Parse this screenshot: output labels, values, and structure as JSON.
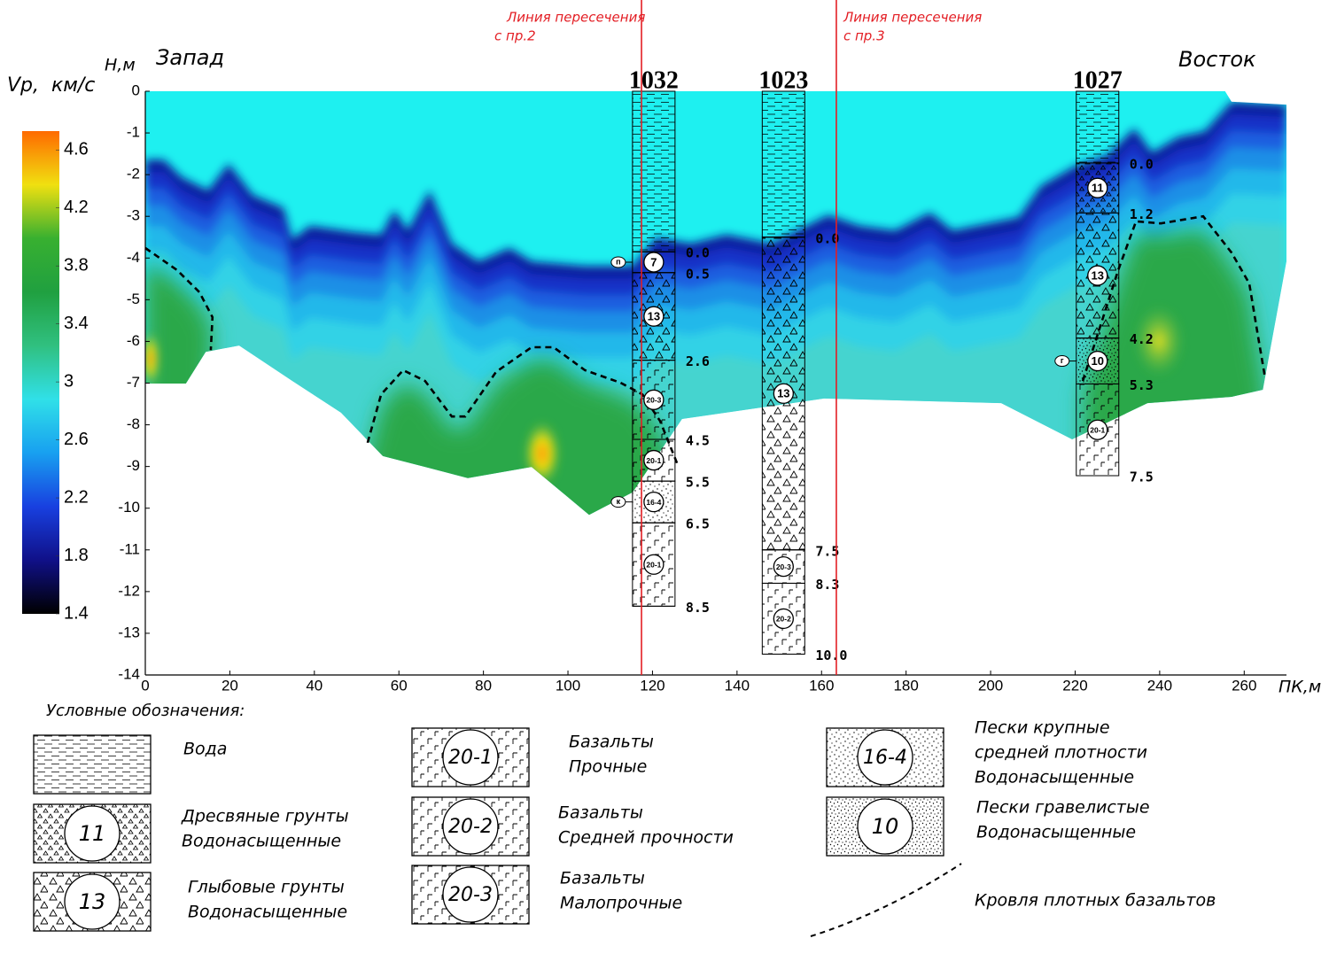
{
  "chart_data": {
    "type": "section",
    "west_label": "Запад",
    "east_label": "Восток",
    "x_label": "ПК,м",
    "y_label": "Н,м",
    "xlim": [
      0,
      270
    ],
    "xticks": [
      0,
      20,
      40,
      60,
      80,
      100,
      120,
      140,
      160,
      180,
      200,
      220,
      240,
      260
    ],
    "ylim": [
      -14,
      0
    ],
    "yticks": [
      0,
      -1,
      -2,
      -3,
      -4,
      -5,
      -6,
      -7,
      -8,
      -9,
      -10,
      -11,
      -12,
      -13,
      -14
    ],
    "colorbar": {
      "label": "Vp,  км/с",
      "clim": [
        1.4,
        4.73
      ],
      "ticks": [
        4.6,
        4.2,
        3.8,
        3.4,
        3,
        2.6,
        2.2,
        1.8,
        1.4
      ],
      "colors": [
        "#000000",
        "#101088",
        "#1840e0",
        "#18a0f0",
        "#30e0e8",
        "#30c080",
        "#20a040",
        "#38b030",
        "#f0e010",
        "#ff6a00"
      ]
    },
    "section_outline": {
      "x": [
        0,
        255.5,
        257,
        270,
        270,
        264.4,
        257,
        237.1,
        219.3,
        202.5,
        160.6,
        127,
        115.3,
        105,
        91.4,
        76.3,
        66.2,
        56.2,
        46.3,
        34.8,
        22.2,
        14.3,
        9.6,
        0
      ],
      "y": [
        0,
        0,
        -0.25,
        -0.32,
        -4.08,
        -7.16,
        -7.33,
        -7.48,
        -8.35,
        -7.48,
        -7.37,
        -7.86,
        -9.62,
        -10.16,
        -9.01,
        -9.28,
        -9.01,
        -8.75,
        -7.71,
        -6.95,
        -6.1,
        -6.25,
        -7.01,
        -7.01
      ]
    },
    "seabed": {
      "x": [
        0,
        4.4,
        8.6,
        14.9,
        19.7,
        25.4,
        32.7,
        34.8,
        39.0,
        49.5,
        55.8,
        58.9,
        62.1,
        67.3,
        72.5,
        78.8,
        86.2,
        91.4,
        104.0,
        115.3,
        120.8,
        129.1,
        137.5,
        148.0,
        161.6,
        169.0,
        177.4,
        185.7,
        191.0,
        206.7,
        211.9,
        220.3,
        227.7,
        234.0,
        238.2,
        244.4,
        250.7,
        257.0,
        270
      ],
      "y": [
        -1.64,
        -1.64,
        -2.06,
        -2.38,
        -1.74,
        -2.49,
        -2.8,
        -3.55,
        -3.23,
        -3.38,
        -3.44,
        -2.85,
        -3.34,
        -2.38,
        -3.65,
        -4.08,
        -3.76,
        -4.08,
        -4.19,
        -4.19,
        -3.51,
        -3.65,
        -3.44,
        -3.65,
        -2.97,
        -3.23,
        -3.34,
        -2.91,
        -3.34,
        -3.02,
        -2.27,
        -1.78,
        -1.53,
        -0.89,
        -1.47,
        -1.1,
        -0.96,
        -0.25,
        -0.32
      ]
    },
    "basalt_roof": [
      {
        "x": [
          0,
          7.5,
          12.8,
          15.9,
          15.5
        ],
        "y": [
          -3.76,
          -4.29,
          -4.82,
          -5.42,
          -6.21
        ]
      },
      {
        "x": [
          52.6,
          55.8,
          61.0,
          66.2,
          72.5,
          75.7,
          83.0,
          91.4,
          96.6,
          104.0,
          112.4,
          117.6,
          121.8,
          126.0
        ],
        "y": [
          -8.43,
          -7.27,
          -6.69,
          -6.95,
          -7.8,
          -7.8,
          -6.73,
          -6.14,
          -6.14,
          -6.69,
          -6.99,
          -7.27,
          -7.91,
          -8.97
        ]
      },
      {
        "x": [
          221.8,
          230.2,
          234.4,
          240.3,
          250.3,
          257.0,
          261.2,
          263.3,
          265.0
        ],
        "y": [
          -6.95,
          -4.29,
          -3.12,
          -3.17,
          -3.0,
          -3.87,
          -4.61,
          -5.89,
          -6.9
        ]
      }
    ],
    "intersection_color": "#e31e24",
    "intersections": [
      {
        "x": 117.4,
        "lines": [
          "Линия пересечения",
          "с пр.2"
        ]
      },
      {
        "x": 163.5,
        "lines": [
          "Линия пересечения",
          "с пр.3"
        ]
      }
    ],
    "boreholes": [
      {
        "name": "1032",
        "x": 120.3,
        "top": -3.85,
        "values": [
          0,
          0.5,
          2.6,
          4.5,
          5.5,
          6.5,
          8.5
        ],
        "value_labels": [
          "0.0",
          "0.5",
          "2.6",
          "4.5",
          "5.5",
          "6.5",
          "8.5"
        ],
        "layers": [
          {
            "code": "7",
            "pattern": "plain",
            "flag": "п"
          },
          {
            "code": "13",
            "pattern": "blocky"
          },
          {
            "code": "20-3",
            "pattern": "basalt"
          },
          {
            "code": "20-1",
            "pattern": "basalt"
          },
          {
            "code": "16-4",
            "pattern": "sand",
            "flag": "к"
          },
          {
            "code": "20-1",
            "pattern": "basalt"
          }
        ]
      },
      {
        "name": "1023",
        "x": 151.0,
        "top": -3.5,
        "values": [
          0,
          7.5,
          8.3,
          10
        ],
        "value_labels": [
          "0.0",
          "7.5",
          "8.3",
          "10.0"
        ],
        "layers": [
          {
            "code": "13",
            "pattern": "blocky"
          },
          {
            "code": "20-3",
            "pattern": "basalt"
          },
          {
            "code": "20-2",
            "pattern": "basalt"
          }
        ]
      },
      {
        "name": "1027",
        "x": 225.3,
        "top": -1.72,
        "values": [
          0,
          1.2,
          4.2,
          5.3,
          7.5
        ],
        "value_labels": [
          "0.0",
          "1.2",
          "4.2",
          "5.3",
          "7.5"
        ],
        "layers": [
          {
            "code": "11",
            "pattern": "dresva"
          },
          {
            "code": "13",
            "pattern": "blocky"
          },
          {
            "code": "10",
            "pattern": "gravel",
            "flag": "г"
          },
          {
            "code": "20-1",
            "pattern": "basalt"
          }
        ]
      }
    ],
    "legend": {
      "title": "Условные обозначения:",
      "items": [
        {
          "pattern": "water",
          "lines": [
            "Вода"
          ]
        },
        {
          "code": "11",
          "pattern": "dresva",
          "lines": [
            "Дресвяные грунты",
            "Водонасыщенные"
          ]
        },
        {
          "code": "13",
          "pattern": "blocky",
          "lines": [
            "Глыбовые грунты",
            "Водонасыщенные"
          ]
        },
        {
          "code": "20-1",
          "pattern": "basalt",
          "lines": [
            "Базальты",
            "Прочные"
          ]
        },
        {
          "code": "20-2",
          "pattern": "basalt",
          "lines": [
            "Базальты",
            "Средней прочности"
          ]
        },
        {
          "code": "20-3",
          "pattern": "basalt",
          "lines": [
            "Базальты",
            "Малопрочные"
          ]
        },
        {
          "code": "16-4",
          "pattern": "sand",
          "lines": [
            "Пески крупные",
            "средней плотности",
            "Водонасыщенные"
          ]
        },
        {
          "code": "10",
          "pattern": "gravel",
          "lines": [
            "Пески гравелистые",
            "Водонасыщенные"
          ]
        },
        {
          "pattern": "roof-line",
          "lines": [
            "Кровля плотных базальтов"
          ]
        }
      ]
    }
  }
}
